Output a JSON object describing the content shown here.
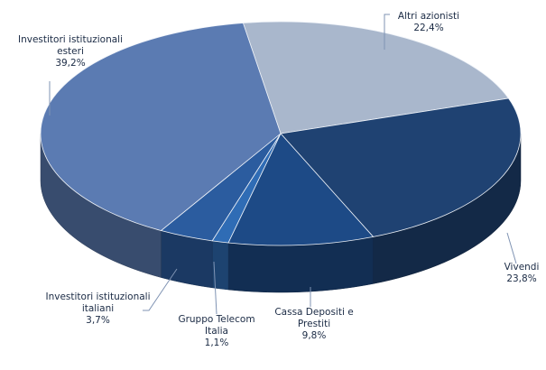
{
  "chart_data": {
    "type": "pie",
    "categories": [
      "Altri azionisti",
      "Vivendi",
      "Cassa Depositi e Prestiti",
      "Gruppo Telecom Italia",
      "Investitori istituzionali italiani",
      "Investitori istituzionali esteri"
    ],
    "values": [
      22.4,
      23.8,
      9.8,
      1.1,
      3.7,
      39.2
    ],
    "value_labels": [
      "22,4%",
      "23,8%",
      "9,8%",
      "1,1%",
      "3,7%",
      "39,2%"
    ],
    "colors": [
      "#a9b7cc",
      "#1f4272",
      "#1d4a86",
      "#2f6cb5",
      "#2b5c9f",
      "#5b7bb2"
    ]
  }
}
